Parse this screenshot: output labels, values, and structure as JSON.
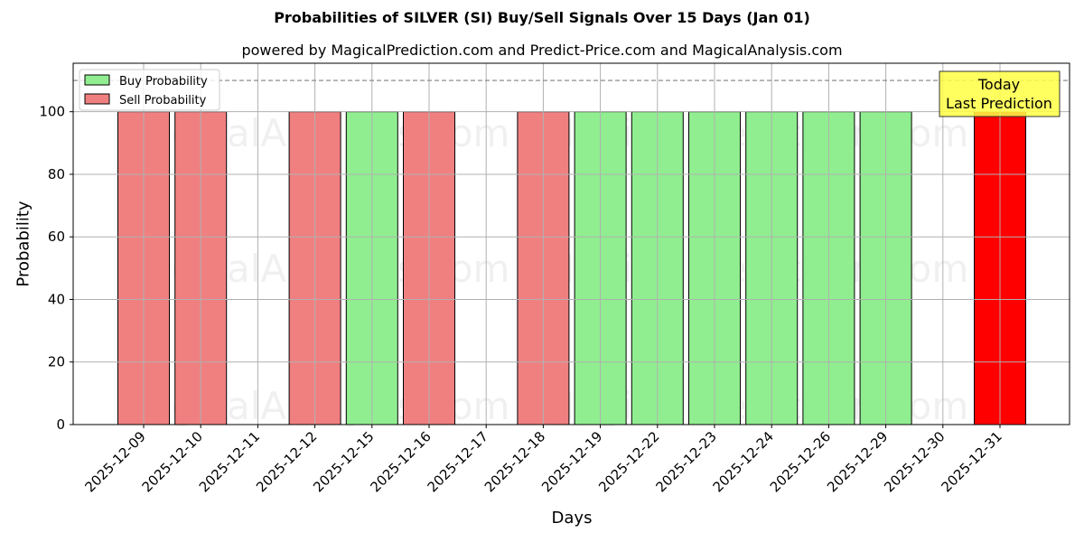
{
  "chart_data": {
    "type": "bar",
    "title": "Probabilities of SILVER (SI) Buy/Sell Signals Over 15 Days (Jan 01)",
    "subtitle": "powered by MagicalPrediction.com and Predict-Price.com and MagicalAnalysis.com",
    "xlabel": "Days",
    "ylabel": "Probability",
    "ylim": [
      0,
      115.5
    ],
    "yticks": [
      0,
      20,
      40,
      60,
      80,
      100
    ],
    "grid": true,
    "legend_position": "upper left",
    "reference_line": {
      "y": 110,
      "style": "dashed",
      "color": "#808080"
    },
    "categories": [
      "2025-12-09",
      "2025-12-10",
      "2025-12-11",
      "2025-12-12",
      "2025-12-15",
      "2025-12-16",
      "2025-12-17",
      "2025-12-18",
      "2025-12-19",
      "2025-12-22",
      "2025-12-23",
      "2025-12-24",
      "2025-12-26",
      "2025-12-29",
      "2025-12-30",
      "2025-12-31"
    ],
    "series": [
      {
        "name": "Buy Probability",
        "color": "#90ee90",
        "values": [
          0,
          0,
          0,
          0,
          100,
          0,
          0,
          0,
          100,
          100,
          100,
          100,
          100,
          100,
          0,
          0
        ]
      },
      {
        "name": "Sell Probability",
        "color": "#f08080",
        "values": [
          100,
          100,
          0,
          100,
          0,
          100,
          0,
          100,
          0,
          0,
          0,
          0,
          0,
          0,
          0,
          100
        ]
      }
    ],
    "highlight": {
      "category": "2025-12-31",
      "color": "#ff0000",
      "annotation": "Today\nLast Prediction",
      "annotation_bg": "#ffff44"
    },
    "watermarks": [
      "MagicalAnalysis.com",
      "MagicalPrediction.com"
    ]
  },
  "legend": {
    "buy_label": "Buy Probability",
    "sell_label": "Sell Probability"
  },
  "annotation": {
    "line1": "Today",
    "line2": "Last Prediction"
  }
}
